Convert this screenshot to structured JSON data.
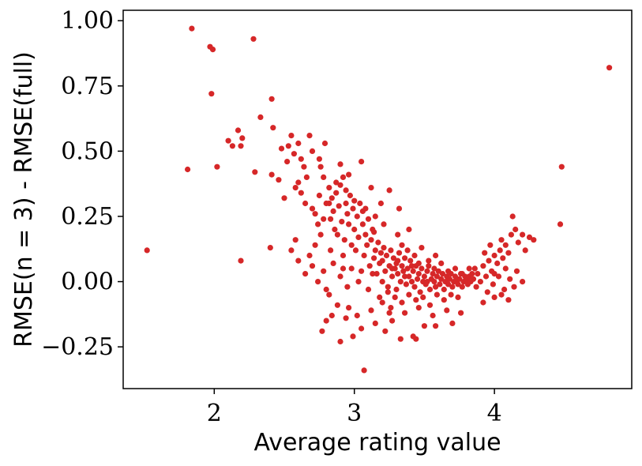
{
  "chart_data": {
    "type": "scatter",
    "title": "",
    "xlabel": "Average rating value",
    "ylabel": "RMSE(n = 3) - RMSE(full)",
    "xlim": [
      1.35,
      4.98
    ],
    "ylim": [
      -0.41,
      1.04
    ],
    "xticks": [
      2,
      3,
      4
    ],
    "xtick_labels": [
      "2",
      "3",
      "4"
    ],
    "yticks": [
      -0.25,
      0.0,
      0.25,
      0.5,
      0.75,
      1.0
    ],
    "ytick_labels": [
      "−0.25",
      "0.00",
      "0.25",
      "0.50",
      "0.75",
      "1.00"
    ],
    "grid": false,
    "series": [
      {
        "color": "#d62728",
        "points": [
          [
            1.52,
            0.12
          ],
          [
            1.81,
            0.43
          ],
          [
            1.84,
            0.97
          ],
          [
            1.97,
            0.9
          ],
          [
            1.98,
            0.72
          ],
          [
            1.99,
            0.89
          ],
          [
            2.02,
            0.44
          ],
          [
            2.1,
            0.54
          ],
          [
            2.13,
            0.52
          ],
          [
            2.17,
            0.58
          ],
          [
            2.19,
            0.52
          ],
          [
            2.2,
            0.55
          ],
          [
            2.19,
            0.08
          ],
          [
            2.28,
            0.93
          ],
          [
            2.29,
            0.42
          ],
          [
            2.33,
            0.63
          ],
          [
            2.4,
            0.13
          ],
          [
            2.41,
            0.7
          ],
          [
            2.41,
            0.41
          ],
          [
            2.42,
            0.59
          ],
          [
            2.46,
            0.39
          ],
          [
            2.48,
            0.51
          ],
          [
            2.5,
            0.32
          ],
          [
            2.52,
            0.46
          ],
          [
            2.53,
            0.52
          ],
          [
            2.55,
            0.56
          ],
          [
            2.57,
            0.49
          ],
          [
            2.6,
            0.53
          ],
          [
            2.62,
            0.47
          ],
          [
            2.58,
            0.36
          ],
          [
            2.6,
            0.38
          ],
          [
            2.62,
            0.34
          ],
          [
            2.64,
            0.44
          ],
          [
            2.65,
            0.3
          ],
          [
            2.66,
            0.4
          ],
          [
            2.68,
            0.56
          ],
          [
            2.7,
            0.28
          ],
          [
            2.72,
            0.26
          ],
          [
            2.74,
            0.22
          ],
          [
            2.75,
            0.33
          ],
          [
            2.76,
            0.44
          ],
          [
            2.78,
            0.4
          ],
          [
            2.79,
            0.53
          ],
          [
            2.8,
            0.3
          ],
          [
            2.82,
            0.36
          ],
          [
            2.83,
            0.24
          ],
          [
            2.84,
            0.32
          ],
          [
            2.85,
            0.27
          ],
          [
            2.86,
            0.2
          ],
          [
            2.87,
            0.34
          ],
          [
            2.88,
            0.18
          ],
          [
            2.89,
            0.29
          ],
          [
            2.9,
            0.37
          ],
          [
            2.91,
            0.23
          ],
          [
            2.92,
            0.4
          ],
          [
            2.93,
            0.16
          ],
          [
            2.94,
            0.3
          ],
          [
            2.95,
            0.26
          ],
          [
            2.96,
            0.22
          ],
          [
            2.97,
            0.33
          ],
          [
            2.98,
            0.14
          ],
          [
            2.99,
            0.28
          ],
          [
            3.0,
            0.2
          ],
          [
            3.01,
            0.12
          ],
          [
            3.02,
            0.25
          ],
          [
            3.03,
            0.17
          ],
          [
            3.04,
            0.3
          ],
          [
            3.05,
            0.46
          ],
          [
            3.06,
            0.22
          ],
          [
            3.07,
            0.1
          ],
          [
            3.08,
            0.18
          ],
          [
            3.09,
            0.14
          ],
          [
            3.1,
            0.24
          ],
          [
            3.11,
            0.06
          ],
          [
            3.12,
            0.16
          ],
          [
            3.13,
            0.2
          ],
          [
            3.14,
            0.09
          ],
          [
            3.15,
            0.12
          ],
          [
            3.16,
            0.03
          ],
          [
            3.17,
            0.15
          ],
          [
            3.18,
            0.07
          ],
          [
            3.19,
            0.11
          ],
          [
            3.2,
            0.0
          ],
          [
            3.2,
            0.08
          ],
          [
            3.21,
            0.13
          ],
          [
            3.22,
            0.04
          ],
          [
            3.23,
            0.1
          ],
          [
            3.24,
            -0.02
          ],
          [
            3.25,
            0.06
          ],
          [
            3.26,
            0.12
          ],
          [
            3.27,
            0.02
          ],
          [
            3.28,
            0.09
          ],
          [
            3.29,
            0.05
          ],
          [
            3.3,
            -0.03
          ],
          [
            3.3,
            0.07
          ],
          [
            3.31,
            0.03
          ],
          [
            3.32,
            0.11
          ],
          [
            3.33,
            0.0
          ],
          [
            3.34,
            0.06
          ],
          [
            3.35,
            0.04
          ],
          [
            3.36,
            0.09
          ],
          [
            3.37,
            -0.01
          ],
          [
            3.38,
            0.05
          ],
          [
            3.39,
            0.02
          ],
          [
            3.4,
            0.08
          ],
          [
            3.41,
            0.0
          ],
          [
            3.42,
            0.04
          ],
          [
            3.43,
            -0.02
          ],
          [
            3.44,
            0.06
          ],
          [
            3.45,
            0.01
          ],
          [
            3.46,
            0.03
          ],
          [
            3.47,
            -0.04
          ],
          [
            3.48,
            0.05
          ],
          [
            3.49,
            0.0
          ],
          [
            3.5,
            0.02
          ],
          [
            3.51,
            -0.01
          ],
          [
            3.52,
            0.04
          ],
          [
            3.53,
            0.06
          ],
          [
            3.54,
            -0.03
          ],
          [
            3.55,
            0.01
          ],
          [
            3.56,
            0.03
          ],
          [
            3.57,
            0.0
          ],
          [
            3.58,
            -0.02
          ],
          [
            3.59,
            0.02
          ],
          [
            3.6,
            0.04
          ],
          [
            3.61,
            -0.01
          ],
          [
            3.62,
            0.01
          ],
          [
            3.63,
            0.03
          ],
          [
            3.64,
            -0.03
          ],
          [
            3.65,
            0.0
          ],
          [
            3.66,
            0.02
          ],
          [
            3.67,
            -0.01
          ],
          [
            3.68,
            0.01
          ],
          [
            3.69,
            0.03
          ],
          [
            3.7,
            -0.02
          ],
          [
            3.71,
            0.0
          ],
          [
            3.72,
            0.02
          ],
          [
            3.73,
            0.0
          ],
          [
            3.74,
            -0.01
          ],
          [
            3.75,
            0.01
          ],
          [
            3.76,
            0.03
          ],
          [
            3.77,
            -0.02
          ],
          [
            3.78,
            0.0
          ],
          [
            3.79,
            0.02
          ],
          [
            3.8,
            0.01
          ],
          [
            3.81,
            -0.01
          ],
          [
            3.82,
            0.02
          ],
          [
            3.83,
            0.0
          ],
          [
            3.84,
            0.03
          ],
          [
            3.85,
            0.01
          ],
          [
            3.27,
            0.05
          ],
          [
            3.31,
            0.08
          ],
          [
            3.36,
            0.02
          ],
          [
            3.41,
            0.06
          ],
          [
            3.46,
            0.07
          ],
          [
            3.52,
            0.0
          ],
          [
            3.57,
            0.05
          ],
          [
            3.62,
            0.07
          ],
          [
            3.67,
            0.04
          ],
          [
            3.72,
            0.05
          ],
          [
            3.77,
            0.03
          ],
          [
            3.82,
            0.05
          ],
          [
            3.34,
            0.14
          ],
          [
            3.38,
            0.12
          ],
          [
            3.43,
            0.1
          ],
          [
            3.48,
            0.13
          ],
          [
            3.53,
            0.08
          ],
          [
            3.58,
            0.1
          ],
          [
            3.29,
            -0.06
          ],
          [
            3.34,
            -0.08
          ],
          [
            3.39,
            -0.05
          ],
          [
            3.44,
            -0.07
          ],
          [
            3.49,
            -0.06
          ],
          [
            3.54,
            -0.09
          ],
          [
            3.59,
            -0.05
          ],
          [
            3.64,
            -0.07
          ],
          [
            3.69,
            -0.05
          ],
          [
            3.74,
            -0.06
          ],
          [
            3.26,
            -0.1
          ],
          [
            3.36,
            -0.12
          ],
          [
            3.46,
            -0.1
          ],
          [
            3.56,
            -0.13
          ],
          [
            3.66,
            -0.11
          ],
          [
            3.76,
            -0.12
          ],
          [
            3.31,
            0.18
          ],
          [
            3.39,
            0.2
          ],
          [
            3.21,
            0.22
          ],
          [
            3.15,
            0.25
          ],
          [
            3.08,
            0.28
          ],
          [
            3.0,
            0.31
          ],
          [
            2.94,
            0.35
          ],
          [
            2.87,
            0.38
          ],
          [
            2.98,
            0.05
          ],
          [
            3.03,
            0.0
          ],
          [
            3.1,
            -0.03
          ],
          [
            3.18,
            -0.06
          ],
          [
            3.24,
            -0.04
          ],
          [
            2.92,
            0.1
          ],
          [
            2.85,
            0.07
          ],
          [
            2.9,
            0.02
          ],
          [
            2.95,
            -0.02
          ],
          [
            3.05,
            0.04
          ],
          [
            3.13,
            0.03
          ],
          [
            3.2,
            -0.08
          ],
          [
            2.78,
            0.04
          ],
          [
            2.82,
            -0.05
          ],
          [
            2.88,
            -0.09
          ],
          [
            2.96,
            -0.1
          ],
          [
            3.02,
            -0.13
          ],
          [
            3.12,
            -0.11
          ],
          [
            2.77,
            -0.19
          ],
          [
            2.8,
            -0.15
          ],
          [
            2.84,
            -0.13
          ],
          [
            2.9,
            -0.23
          ],
          [
            2.99,
            -0.21
          ],
          [
            3.07,
            -0.34
          ],
          [
            3.22,
            -0.19
          ],
          [
            3.27,
            -0.15
          ],
          [
            3.33,
            -0.22
          ],
          [
            3.42,
            -0.21
          ],
          [
            3.44,
            -0.22
          ],
          [
            3.5,
            -0.17
          ],
          [
            3.58,
            -0.17
          ],
          [
            3.7,
            -0.16
          ],
          [
            3.25,
            -0.12
          ],
          [
            3.15,
            -0.16
          ],
          [
            3.05,
            -0.18
          ],
          [
            2.94,
            -0.14
          ],
          [
            2.7,
            0.06
          ],
          [
            2.65,
            0.03
          ],
          [
            2.6,
            0.08
          ],
          [
            2.72,
            0.14
          ],
          [
            2.76,
            0.18
          ],
          [
            2.83,
            0.12
          ],
          [
            2.92,
            0.05
          ],
          [
            2.58,
            0.16
          ],
          [
            2.55,
            0.12
          ],
          [
            2.68,
            0.1
          ],
          [
            2.74,
            0.0
          ],
          [
            2.8,
            -0.03
          ],
          [
            3.86,
            0.05
          ],
          [
            3.87,
            -0.02
          ],
          [
            3.88,
            0.03
          ],
          [
            3.9,
            0.0
          ],
          [
            3.92,
            0.06
          ],
          [
            3.94,
            0.02
          ],
          [
            3.96,
            0.08
          ],
          [
            3.98,
            0.04
          ],
          [
            4.0,
            0.1
          ],
          [
            4.02,
            0.07
          ],
          [
            4.04,
            0.12
          ],
          [
            4.06,
            0.09
          ],
          [
            4.08,
            0.14
          ],
          [
            4.1,
            0.11
          ],
          [
            4.12,
            0.18
          ],
          [
            4.13,
            0.25
          ],
          [
            4.15,
            0.2
          ],
          [
            4.17,
            0.15
          ],
          [
            4.2,
            0.18
          ],
          [
            4.22,
            0.12
          ],
          [
            4.25,
            0.17
          ],
          [
            4.28,
            0.16
          ],
          [
            3.95,
            -0.04
          ],
          [
            4.0,
            -0.06
          ],
          [
            4.05,
            -0.05
          ],
          [
            4.1,
            -0.07
          ],
          [
            4.14,
            -0.02
          ],
          [
            3.92,
            -0.08
          ],
          [
            4.0,
            0.03
          ],
          [
            4.08,
            0.05
          ],
          [
            4.16,
            0.04
          ],
          [
            4.2,
            0.0
          ],
          [
            4.48,
            0.44
          ],
          [
            4.47,
            0.22
          ],
          [
            4.82,
            0.82
          ],
          [
            3.97,
            0.14
          ],
          [
            4.05,
            0.16
          ],
          [
            3.93,
            0.11
          ],
          [
            4.03,
            0.02
          ],
          [
            4.11,
            0.01
          ],
          [
            3.99,
            -0.01
          ],
          [
            4.07,
            -0.03
          ],
          [
            3.25,
            0.35
          ],
          [
            3.32,
            0.28
          ],
          [
            3.12,
            0.36
          ],
          [
            3.19,
            0.3
          ],
          [
            2.9,
            0.45
          ],
          [
            2.96,
            0.41
          ],
          [
            2.7,
            0.5
          ],
          [
            2.75,
            0.47
          ],
          [
            2.78,
            0.24
          ],
          [
            2.82,
            0.3
          ],
          [
            3.06,
            0.27
          ],
          [
            3.14,
            0.19
          ]
        ]
      }
    ]
  }
}
